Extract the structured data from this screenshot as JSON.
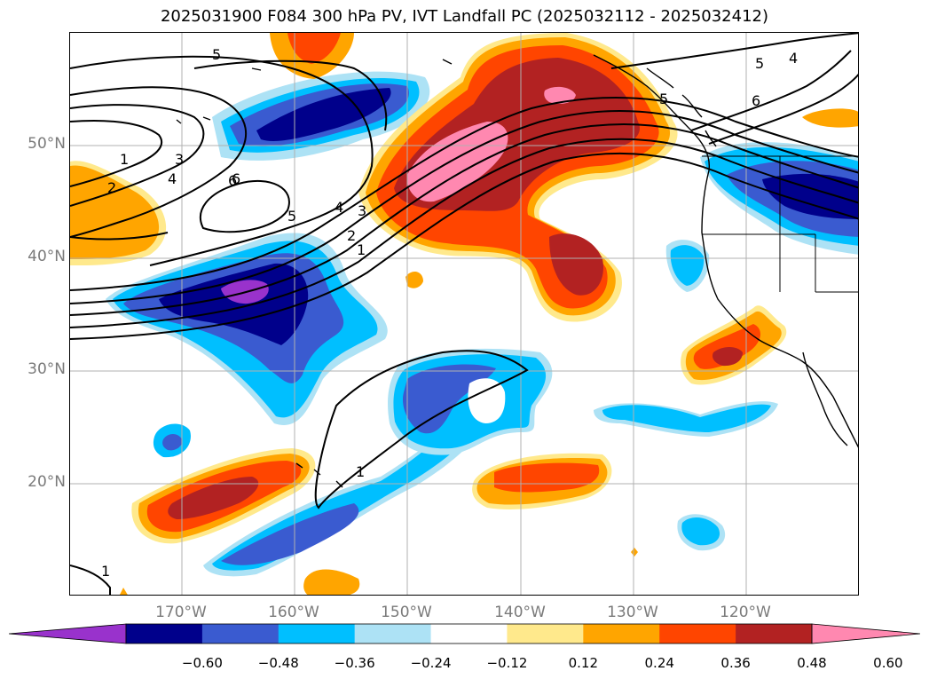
{
  "title": "2025031900 F084 300 hPa PV, IVT Landfall PC (2025032112 - 2025032412)",
  "axes": {
    "lat_labels": [
      "50°N",
      "40°N",
      "30°N",
      "20°N"
    ],
    "lon_labels": [
      "170°W",
      "160°W",
      "150°W",
      "140°W",
      "130°W",
      "120°W"
    ]
  },
  "contour_labels": [
    "5",
    "5",
    "6",
    "5",
    "4",
    "3",
    "2",
    "1",
    "4",
    "3",
    "2",
    "1",
    "6",
    "1",
    "4",
    "5",
    "6",
    "1"
  ],
  "colorbar": {
    "ticks": [
      "−0.60",
      "−0.48",
      "−0.36",
      "−0.24",
      "−0.12",
      "0.12",
      "0.24",
      "0.36",
      "0.48",
      "0.60"
    ],
    "colors": [
      "#9932CC",
      "#00008B",
      "#3A5BD0",
      "#00BFFF",
      "#ADE2F5",
      "#FFFFFF",
      "#FFE98C",
      "#FFA500",
      "#FF4500",
      "#B22222",
      "#FF88B0"
    ]
  },
  "chart_data": {
    "type": "heatmap",
    "title": "2025031900 F084 300 hPa PV, IVT Landfall PC (2025032112 - 2025032412)",
    "x_ticks": [
      "170°W",
      "160°W",
      "150°W",
      "140°W",
      "130°W",
      "120°W"
    ],
    "y_ticks": [
      "50°N",
      "40°N",
      "30°N",
      "20°N"
    ],
    "colorbar_levels": [
      -0.6,
      -0.48,
      -0.36,
      -0.24,
      -0.12,
      0.12,
      0.24,
      0.36,
      0.48,
      0.6
    ],
    "pv_contour_levels": [
      1,
      2,
      3,
      4,
      5,
      6
    ],
    "grid": true
  }
}
